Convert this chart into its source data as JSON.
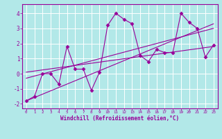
{
  "title": "",
  "xlabel": "Windchill (Refroidissement éolien,°C)",
  "ylabel": "",
  "bg_color": "#b2e8e8",
  "line_color": "#990099",
  "grid_color": "#ffffff",
  "xlim": [
    -0.5,
    23.5
  ],
  "ylim": [
    -2.3,
    4.6
  ],
  "xticks": [
    0,
    1,
    2,
    3,
    4,
    5,
    6,
    7,
    8,
    9,
    10,
    11,
    12,
    13,
    14,
    15,
    16,
    17,
    18,
    19,
    20,
    21,
    22,
    23
  ],
  "yticks": [
    -2,
    -1,
    0,
    1,
    2,
    3,
    4
  ],
  "data_x": [
    0,
    1,
    2,
    3,
    4,
    5,
    6,
    7,
    8,
    9,
    10,
    11,
    12,
    13,
    14,
    15,
    16,
    17,
    18,
    19,
    20,
    21,
    22,
    23
  ],
  "data_y": [
    -1.8,
    -1.5,
    0.0,
    0.0,
    -0.7,
    1.8,
    0.3,
    0.3,
    -1.1,
    0.1,
    3.2,
    4.0,
    3.6,
    3.3,
    1.2,
    0.8,
    1.6,
    1.4,
    1.4,
    4.0,
    3.4,
    3.0,
    1.1,
    1.9
  ],
  "trend1_x": [
    0,
    23
  ],
  "trend1_y": [
    -1.8,
    3.3
  ],
  "trend2_x": [
    0,
    23
  ],
  "trend2_y": [
    -0.3,
    3.0
  ],
  "trend3_x": [
    0,
    23
  ],
  "trend3_y": [
    0.1,
    1.8
  ]
}
